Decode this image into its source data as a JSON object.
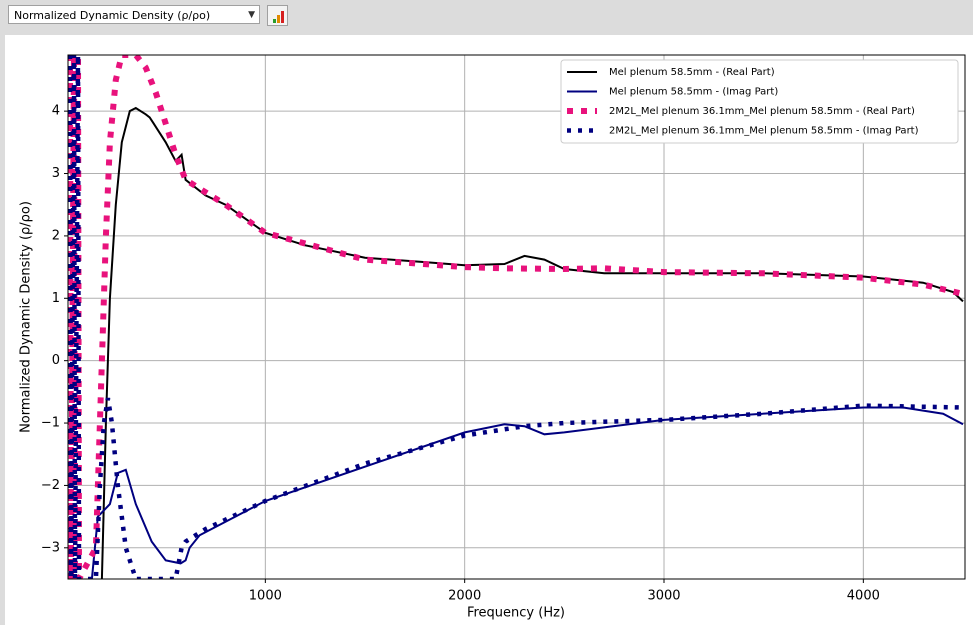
{
  "toolbar": {
    "dropdown": "Normalized Dynamic Density (ρ/ρo)"
  },
  "chart_data": {
    "type": "line",
    "x_label": "Frequency (Hz)",
    "y_label": "Normalized Dynamic Density (ρ/ρo)",
    "xlim": [
      10,
      4510
    ],
    "ylim": [
      -3.5,
      4.9
    ],
    "xticks": [
      1000,
      2000,
      3000,
      4000
    ],
    "yticks": [
      {
        "value": -3,
        "label": "−3"
      },
      {
        "value": -2,
        "label": "−2"
      },
      {
        "value": -1,
        "label": "−1"
      },
      0,
      1,
      2,
      3,
      4
    ],
    "grid": true,
    "legend": "upper right",
    "series": [
      {
        "name": "Mel plenum 58.5mm - (Real Part)",
        "color": "#000000",
        "style": "solid",
        "x": [
          180,
          200,
          220,
          250,
          280,
          320,
          350,
          400,
          420,
          440,
          500,
          550,
          580,
          600,
          700,
          800,
          1000,
          1200,
          1500,
          1800,
          2000,
          2200,
          2300,
          2400,
          2500,
          2700,
          3000,
          3500,
          4000,
          4300,
          4450,
          4500
        ],
        "values": [
          -3.5,
          -1,
          1,
          2.5,
          3.5,
          4.0,
          4.05,
          3.95,
          3.9,
          3.8,
          3.5,
          3.2,
          3.3,
          2.9,
          2.65,
          2.5,
          2.05,
          1.85,
          1.65,
          1.58,
          1.53,
          1.55,
          1.68,
          1.62,
          1.47,
          1.4,
          1.4,
          1.4,
          1.35,
          1.25,
          1.1,
          0.95
        ]
      },
      {
        "name": "Mel plenum 58.5mm - (Imag Part)",
        "color": "#000080",
        "style": "solid",
        "x": [
          130,
          160,
          220,
          260,
          300,
          350,
          430,
          500,
          575,
          600,
          620,
          670,
          1000,
          2000,
          2200,
          2300,
          2400,
          2500,
          3000,
          4000,
          4200,
          4400,
          4500
        ],
        "values": [
          -3.5,
          -2.5,
          -2.3,
          -1.8,
          -1.75,
          -2.3,
          -2.9,
          -3.2,
          -3.25,
          -3.2,
          -3.0,
          -2.8,
          -2.25,
          -1.15,
          -1.02,
          -1.05,
          -1.18,
          -1.15,
          -0.95,
          -0.75,
          -0.75,
          -0.85,
          -1.02
        ]
      },
      {
        "name": "2M2L_Mel plenum 36.1mm_Mel plenum 58.5mm - (Real Part)",
        "color": "#e8127c",
        "style": "dotted",
        "x": [
          20,
          25,
          40,
          45,
          60,
          65,
          150,
          180,
          200,
          220,
          250,
          280,
          350,
          400,
          450,
          500,
          550,
          600,
          800,
          1000,
          1500,
          2000,
          2200,
          2500,
          2700,
          3000,
          3500,
          4000,
          4300,
          4500
        ],
        "values": [
          4.9,
          -3.5,
          4.9,
          -3.5,
          4.9,
          -3.5,
          -3,
          0,
          2,
          3.5,
          4.5,
          4.9,
          4.9,
          4.7,
          4.3,
          3.8,
          3.3,
          2.9,
          2.5,
          2.05,
          1.62,
          1.5,
          1.48,
          1.47,
          1.48,
          1.42,
          1.4,
          1.33,
          1.22,
          1.07
        ]
      },
      {
        "name": "2M2L_Mel plenum 36.1mm_Mel plenum 58.5mm - (Imag Part)",
        "color": "#000080",
        "style": "dotted",
        "x": [
          20,
          25,
          40,
          45,
          60,
          65,
          150,
          170,
          190,
          210,
          230,
          260,
          300,
          350,
          450,
          550,
          580,
          600,
          700,
          1000,
          1500,
          2000,
          2300,
          2500,
          3000,
          3500,
          4000,
          4500
        ],
        "values": [
          4.9,
          -3.5,
          4.9,
          -3.5,
          4.9,
          -3.5,
          -3.5,
          -2,
          -1,
          -0.6,
          -1,
          -2,
          -3,
          -3.5,
          -3.5,
          -3.5,
          -3,
          -2.9,
          -2.7,
          -2.25,
          -1.65,
          -1.2,
          -1.05,
          -1.0,
          -0.95,
          -0.85,
          -0.72,
          -0.75
        ]
      }
    ]
  }
}
